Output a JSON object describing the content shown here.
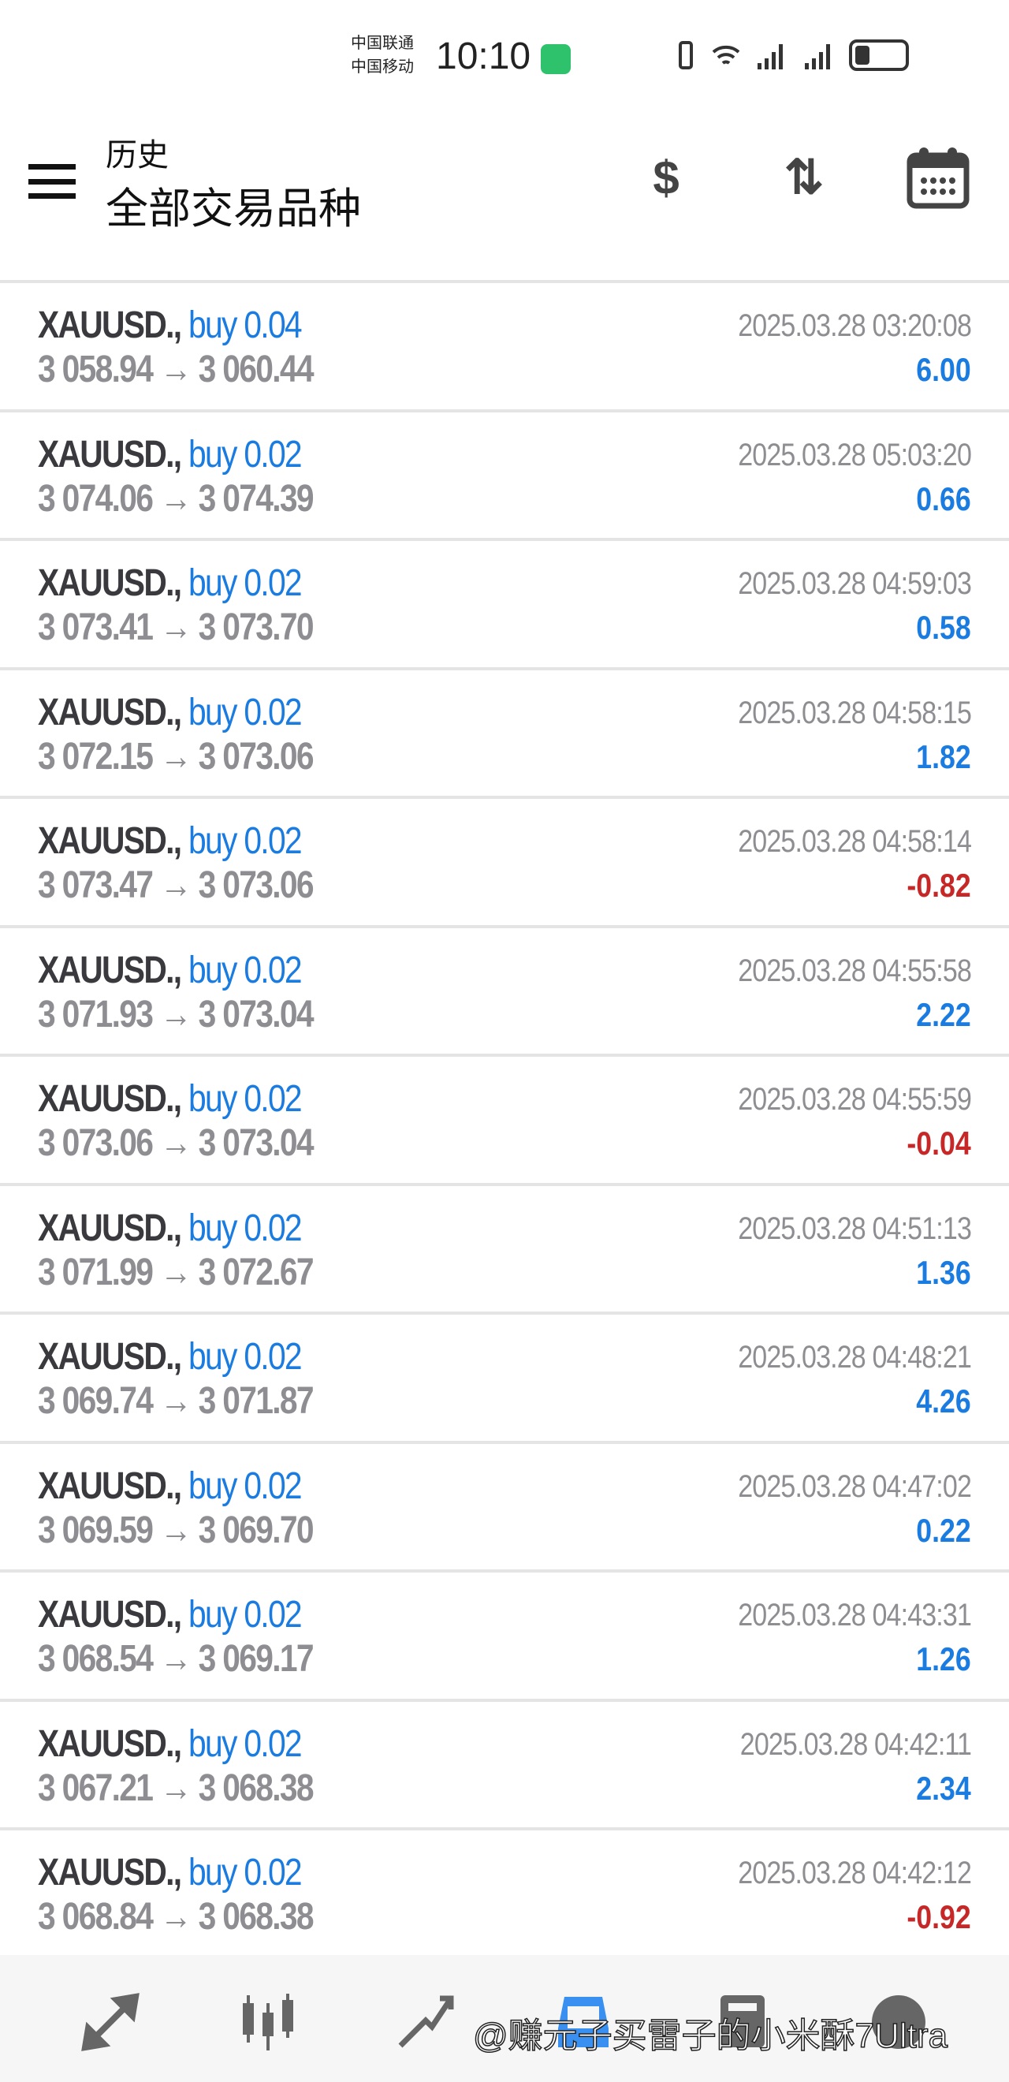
{
  "status_bar": {
    "carrier1": "中国联通",
    "carrier2": "中国移动",
    "time": "10:10",
    "battery_level": 0.3
  },
  "header": {
    "title": "历史",
    "subtitle": "全部交易品种"
  },
  "colors": {
    "buy": "#1a7ce0",
    "profit_positive": "#1a7ce0",
    "profit_negative": "#c62828"
  },
  "trades": [
    {
      "symbol": "XAUUSD.,",
      "side": "buy 0.04",
      "prices": "3 058.94 → 3 060.44",
      "time": "2025.03.28 03:20:08",
      "profit": "6.00"
    },
    {
      "symbol": "XAUUSD.,",
      "side": "buy 0.02",
      "prices": "3 074.06 → 3 074.39",
      "time": "2025.03.28 05:03:20",
      "profit": "0.66"
    },
    {
      "symbol": "XAUUSD.,",
      "side": "buy 0.02",
      "prices": "3 073.41 → 3 073.70",
      "time": "2025.03.28 04:59:03",
      "profit": "0.58"
    },
    {
      "symbol": "XAUUSD.,",
      "side": "buy 0.02",
      "prices": "3 072.15 → 3 073.06",
      "time": "2025.03.28 04:58:15",
      "profit": "1.82"
    },
    {
      "symbol": "XAUUSD.,",
      "side": "buy 0.02",
      "prices": "3 073.47 → 3 073.06",
      "time": "2025.03.28 04:58:14",
      "profit": "-0.82"
    },
    {
      "symbol": "XAUUSD.,",
      "side": "buy 0.02",
      "prices": "3 071.93 → 3 073.04",
      "time": "2025.03.28 04:55:58",
      "profit": "2.22"
    },
    {
      "symbol": "XAUUSD.,",
      "side": "buy 0.02",
      "prices": "3 073.06 → 3 073.04",
      "time": "2025.03.28 04:55:59",
      "profit": "-0.04"
    },
    {
      "symbol": "XAUUSD.,",
      "side": "buy 0.02",
      "prices": "3 071.99 → 3 072.67",
      "time": "2025.03.28 04:51:13",
      "profit": "1.36"
    },
    {
      "symbol": "XAUUSD.,",
      "side": "buy 0.02",
      "prices": "3 069.74 → 3 071.87",
      "time": "2025.03.28 04:48:21",
      "profit": "4.26"
    },
    {
      "symbol": "XAUUSD.,",
      "side": "buy 0.02",
      "prices": "3 069.59 → 3 069.70",
      "time": "2025.03.28 04:47:02",
      "profit": "0.22"
    },
    {
      "symbol": "XAUUSD.,",
      "side": "buy 0.02",
      "prices": "3 068.54 → 3 069.17",
      "time": "2025.03.28 04:43:31",
      "profit": "1.26"
    },
    {
      "symbol": "XAUUSD.,",
      "side": "buy 0.02",
      "prices": "3 067.21 → 3 068.38",
      "time": "2025.03.28 04:42:11",
      "profit": "2.34"
    },
    {
      "symbol": "XAUUSD.,",
      "side": "buy 0.02",
      "prices": "3 068.84 → 3 068.38",
      "time": "2025.03.28 04:42:12",
      "profit": "-0.92"
    }
  ],
  "bottom_nav": [
    {
      "icon": "quotes-icon"
    },
    {
      "icon": "chart-icon"
    },
    {
      "icon": "trade-icon"
    },
    {
      "icon": "history-icon",
      "active": true
    },
    {
      "icon": "messages-icon"
    },
    {
      "icon": "settings-icon"
    }
  ],
  "watermark": "@赚元子买雷子的小米酥7Ultra"
}
